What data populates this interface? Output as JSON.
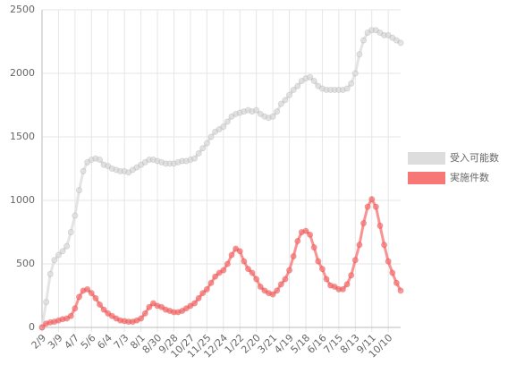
{
  "chart_data": {
    "type": "line",
    "categories": [
      "2/9",
      null,
      null,
      null,
      "3/9",
      null,
      null,
      null,
      "4/7",
      null,
      null,
      null,
      "5/6",
      null,
      null,
      null,
      "6/4",
      null,
      null,
      null,
      "7/3",
      null,
      null,
      null,
      "8/1",
      null,
      null,
      null,
      "8/30",
      null,
      null,
      null,
      "9/28",
      null,
      null,
      null,
      "10/27",
      null,
      null,
      null,
      "11/25",
      null,
      null,
      null,
      "12/24",
      null,
      null,
      null,
      "1/22",
      null,
      null,
      null,
      "2/20",
      null,
      null,
      null,
      "3/21",
      null,
      null,
      null,
      "4/19",
      null,
      null,
      null,
      "5/18",
      null,
      null,
      null,
      "6/16",
      null,
      null,
      null,
      "7/15",
      null,
      null,
      null,
      "8/13",
      null,
      null,
      null,
      "9/11",
      null,
      null,
      null,
      "10/10",
      null,
      null,
      null
    ],
    "series": [
      {
        "name": "受入可能数",
        "color": "#dddddd",
        "values": [
          0,
          200,
          420,
          530,
          570,
          600,
          640,
          750,
          880,
          1080,
          1230,
          1300,
          1320,
          1330,
          1320,
          1280,
          1270,
          1250,
          1240,
          1230,
          1230,
          1220,
          1240,
          1260,
          1280,
          1300,
          1320,
          1320,
          1310,
          1300,
          1290,
          1290,
          1290,
          1300,
          1310,
          1310,
          1320,
          1330,
          1370,
          1410,
          1450,
          1500,
          1540,
          1560,
          1580,
          1620,
          1660,
          1680,
          1690,
          1700,
          1710,
          1700,
          1710,
          1680,
          1660,
          1650,
          1660,
          1700,
          1760,
          1790,
          1830,
          1870,
          1900,
          1940,
          1960,
          1970,
          1940,
          1900,
          1880,
          1870,
          1870,
          1870,
          1870,
          1870,
          1880,
          1920,
          2000,
          2150,
          2260,
          2320,
          2340,
          2340,
          2320,
          2300,
          2300,
          2280,
          2260,
          2240
        ]
      },
      {
        "name": "実施件数",
        "color": "#f77777",
        "values": [
          0,
          30,
          40,
          45,
          55,
          65,
          70,
          90,
          150,
          240,
          290,
          300,
          270,
          230,
          180,
          140,
          110,
          90,
          70,
          55,
          50,
          45,
          45,
          55,
          70,
          110,
          160,
          190,
          170,
          160,
          140,
          130,
          120,
          120,
          130,
          150,
          170,
          190,
          230,
          270,
          300,
          350,
          400,
          430,
          450,
          500,
          570,
          620,
          600,
          520,
          460,
          430,
          380,
          320,
          290,
          270,
          260,
          290,
          340,
          380,
          450,
          560,
          680,
          750,
          760,
          730,
          630,
          520,
          460,
          380,
          330,
          320,
          300,
          300,
          340,
          410,
          530,
          650,
          820,
          950,
          1010,
          950,
          800,
          650,
          520,
          430,
          350,
          290
        ]
      }
    ],
    "ylim": [
      0,
      2500
    ],
    "yticks": [
      0,
      500,
      1000,
      1500,
      2000,
      2500
    ],
    "grid": true,
    "legend": "right"
  }
}
